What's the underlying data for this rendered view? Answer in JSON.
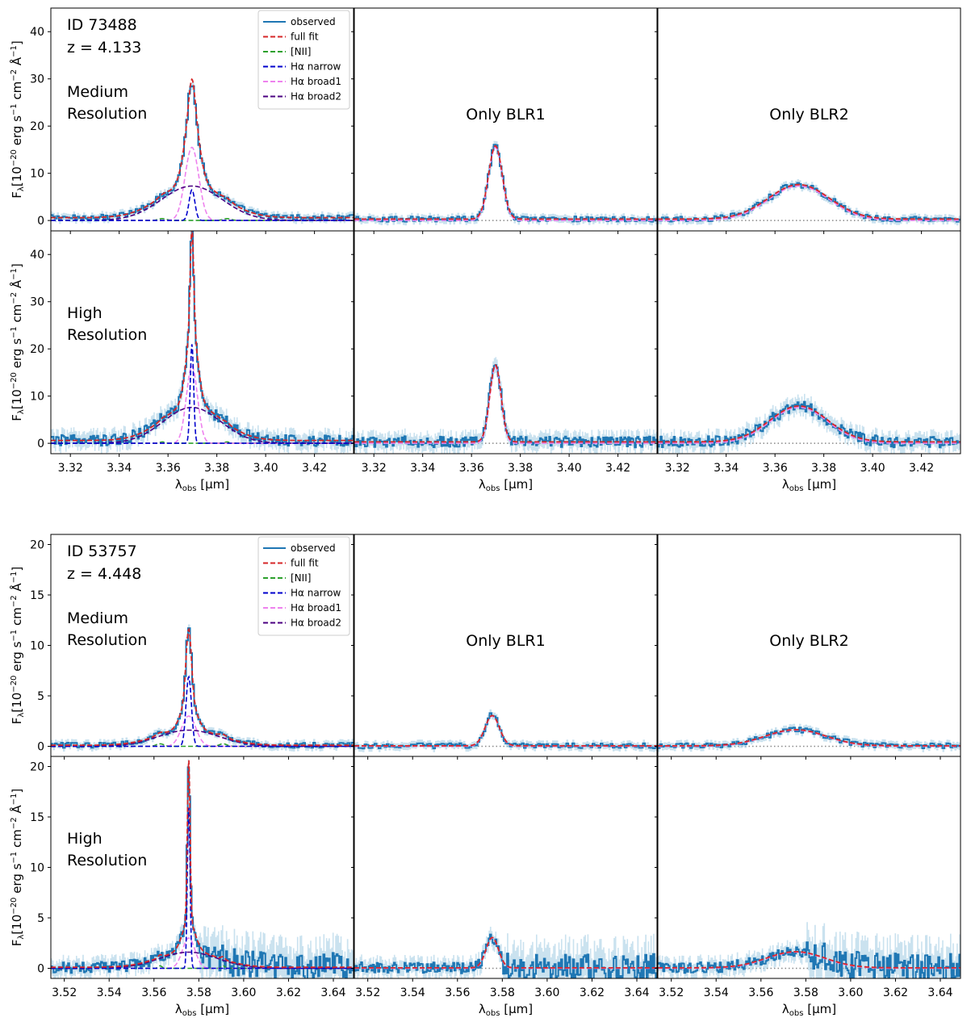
{
  "chart_data": [
    {
      "type": "line",
      "object": {
        "id_label": "ID 73488",
        "z_label": "z = 4.133"
      },
      "xlabel": "λ",
      "xlabel_sub": "obs",
      "xlabel_unit": "[μm]",
      "ylabel": "F",
      "ylabel_sub": "λ",
      "ylabel_unit": "[10",
      "ylabel_exp": "−20",
      "ylabel_rest": " erg s",
      "ylabel_exp2": "−1",
      "ylabel_rest2": " cm",
      "ylabel_exp3": "−2",
      "ylabel_rest3": " Å",
      "ylabel_exp4": "−1",
      "ylabel_close": "]",
      "xlim": [
        3.312,
        3.436
      ],
      "xticks": [
        3.32,
        3.34,
        3.36,
        3.38,
        3.4,
        3.42
      ],
      "xtick_labels": [
        "3.32",
        "3.34",
        "3.36",
        "3.38",
        "3.40",
        "3.42"
      ],
      "ylim": [
        -2.2,
        45
      ],
      "yticks": [
        0,
        10,
        20,
        30,
        40
      ],
      "ytick_labels": [
        "0",
        "10",
        "20",
        "30",
        "40"
      ],
      "rows": [
        {
          "label_line1": "Medium",
          "label_line2": "Resolution",
          "resolution": "medium"
        },
        {
          "label_line1": "High",
          "label_line2": "Resolution",
          "resolution": "high"
        }
      ],
      "columns": [
        {
          "title": ""
        },
        {
          "title": "Only BLR1"
        },
        {
          "title": "Only BLR2"
        }
      ],
      "lines": {
        "center": 3.3698,
        "continuum": 0.6,
        "nii_offsets": [
          -0.0121,
          0.0144
        ],
        "medium": {
          "narrow_amp": 6.5,
          "narrow_sigma": 0.0012,
          "broad1_amp": 15.5,
          "broad1_sigma": 0.0028,
          "broad2_amp": 7.3,
          "broad2_sigma": 0.0125,
          "nii_amp": 0.4
        },
        "high": {
          "narrow_amp": 21.0,
          "narrow_sigma": 0.0007,
          "broad1_amp": 16.3,
          "broad1_sigma": 0.0023,
          "broad2_amp": 7.6,
          "broad2_sigma": 0.0118,
          "nii_amp": 0.3
        }
      },
      "legend": [
        {
          "label": "observed",
          "color": "#1f77b4",
          "style": "solid"
        },
        {
          "label": "full fit",
          "color": "#d62728",
          "style": "dashed"
        },
        {
          "label": "[NII]",
          "color": "#2ca02c",
          "style": "dashed"
        },
        {
          "label": "Hα narrow",
          "color": "#0000cc",
          "style": "dashed"
        },
        {
          "label": "Hα broad1",
          "color": "#ee82ee",
          "style": "dashed"
        },
        {
          "label": "Hα broad2",
          "color": "#4b0082",
          "style": "dashed"
        }
      ]
    },
    {
      "type": "line",
      "object": {
        "id_label": "ID 53757",
        "z_label": "z = 4.448"
      },
      "xlabel": "λ",
      "xlabel_sub": "obs",
      "xlabel_unit": "[μm]",
      "ylabel": "F",
      "ylabel_sub": "λ",
      "ylabel_unit": "[10",
      "ylabel_exp": "−20",
      "ylabel_rest": " erg s",
      "ylabel_exp2": "−1",
      "ylabel_rest2": " cm",
      "ylabel_exp3": "−2",
      "ylabel_rest3": " Å",
      "ylabel_exp4": "−1",
      "ylabel_close": "]",
      "xlim": [
        3.514,
        3.649
      ],
      "xticks": [
        3.52,
        3.54,
        3.56,
        3.58,
        3.6,
        3.62,
        3.64
      ],
      "xtick_labels": [
        "3.52",
        "3.54",
        "3.56",
        "3.58",
        "3.60",
        "3.62",
        "3.64"
      ],
      "ylim": [
        -1.0,
        21
      ],
      "yticks": [
        0,
        5,
        10,
        15,
        20
      ],
      "ytick_labels": [
        "0",
        "5",
        "10",
        "15",
        "20"
      ],
      "rows": [
        {
          "label_line1": "Medium",
          "label_line2": "Resolution",
          "resolution": "medium"
        },
        {
          "label_line1": "High",
          "label_line2": "Resolution",
          "resolution": "high"
        }
      ],
      "columns": [
        {
          "title": ""
        },
        {
          "title": "Only BLR1"
        },
        {
          "title": "Only BLR2"
        }
      ],
      "lines": {
        "center": 3.5755,
        "continuum": 0.1,
        "nii_offsets": [
          -0.0128,
          0.0153
        ],
        "medium": {
          "narrow_amp": 6.9,
          "narrow_sigma": 0.0012,
          "broad1_amp": 3.0,
          "broad1_sigma": 0.0032,
          "broad2_amp": 1.6,
          "broad2_sigma": 0.0135,
          "nii_amp": 0.25
        },
        "high": {
          "narrow_amp": 16.0,
          "narrow_sigma": 0.0006,
          "broad1_amp": 3.0,
          "broad1_sigma": 0.0028,
          "broad2_amp": 1.6,
          "broad2_sigma": 0.013,
          "nii_amp": 0.25
        }
      },
      "legend": [
        {
          "label": "observed",
          "color": "#1f77b4",
          "style": "solid"
        },
        {
          "label": "full fit",
          "color": "#d62728",
          "style": "dashed"
        },
        {
          "label": "[NII]",
          "color": "#2ca02c",
          "style": "dashed"
        },
        {
          "label": "Hα narrow",
          "color": "#0000cc",
          "style": "dashed"
        },
        {
          "label": "Hα broad1",
          "color": "#ee82ee",
          "style": "dashed"
        },
        {
          "label": "Hα broad2",
          "color": "#4b0082",
          "style": "dashed"
        }
      ]
    }
  ],
  "colors": {
    "observed": "#1f77b4",
    "observed_error": "#9ecae1",
    "full_fit": "#d62728",
    "nii": "#2ca02c",
    "narrow": "#0000cc",
    "broad1": "#ee82ee",
    "broad2": "#4b0082",
    "zero_line": "#888888"
  }
}
